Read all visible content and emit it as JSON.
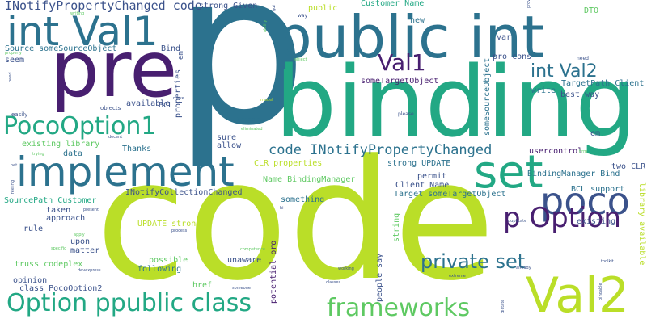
{
  "words": {
    "p": "p",
    "code": "code",
    "binding": "binding",
    "public_int": "public int",
    "pre": "pre",
    "int_val1": "int Val1",
    "implement": "implement",
    "set": "set",
    "poco": "poco",
    "val2": "Val2",
    "option_ppublic_class": "Option ppublic class",
    "frameworks": "frameworks",
    "pocooption1": "PocoOption1",
    "val1": "Val1",
    "p_option": "p Option",
    "private_set": "private set",
    "int_val2": "int Val2",
    "code_inpc": "code INotifyPropertyChanged",
    "inpc_code": "INotifyPropertyChanged code",
    "source_somesourceobject": "Source someSourceObject",
    "strong_given": "strong Given",
    "customer_name": "Customer Name",
    "sometargetobject": "someTargetObject",
    "targetpath_client": "TargetPath Client",
    "best_way": "best way",
    "write": "write",
    "em": "em",
    "pro_cons": "pro cons",
    "var": "var",
    "dto": "DTO",
    "datasets": "datasets",
    "new": "new",
    "public": "public",
    "seem": "seem",
    "bind": "Bind",
    "available": "available",
    "bcl": "BCL",
    "properties": "properties",
    "existing_library": "existing library",
    "data": "data",
    "thanks": "Thanks",
    "sure": "sure",
    "allow": "allow",
    "clr_properties": "CLR properties",
    "name_bindingmanager": "Name BindingManager",
    "strong_update": "strong UPDATE",
    "permit": "permit",
    "client_name": "Client Name",
    "target_sometargetobject": "Target someTargetObject",
    "inotifycollectionchanged": "INotifyCollectionChanged",
    "sourcepath_customer": "SourcePath Customer",
    "taken": "taken",
    "approach": "approach",
    "something": "something",
    "rule": "rule",
    "update_strong": "UPDATE strong",
    "upon": "upon",
    "matter": "matter",
    "possible": "possible",
    "following": "following",
    "unaware": "unaware",
    "truss_codeplex": "truss codeplex",
    "opinion": "opinion",
    "class_pocooption2": "class PocoOption2",
    "href": "href",
    "potential_pro": "potential pro",
    "people_say": "people say",
    "string": "string",
    "existing": "existing",
    "usercontrol": "usercontrol",
    "bindingmanager_bind": "BindingManager Bind",
    "two_clr": "two CLR",
    "bcl_support": "BCL support",
    "library_available": "library available",
    "somesourceobject": "someSourceObject",
    "easily": "easily",
    "objects": "objects",
    "ibindable": "IBindable",
    "eliminated": "eliminated",
    "please": "please",
    "need": "need",
    "writing": "writing",
    "way": "way",
    "firm": "firm",
    "duplicate": "duplicate",
    "already": "already",
    "toolkit": "toolkit",
    "bindable": "bindable",
    "working": "working",
    "classes": "classes",
    "someone": "someone",
    "extreme": "extreme",
    "devexpress": "devexpress",
    "dictate": "dictate",
    "specific": "specific",
    "feeling": "feeling",
    "net": "net",
    "trying": "trying",
    "present": "present",
    "process": "process",
    "hi": "hi",
    "competence": "competence",
    "decent": "decent",
    "apply": "apply",
    "gui": "gui",
    "object": "object",
    "make": "make",
    "properly": "properly",
    "model": "model",
    "ability": "ability",
    "provide": "provide"
  }
}
